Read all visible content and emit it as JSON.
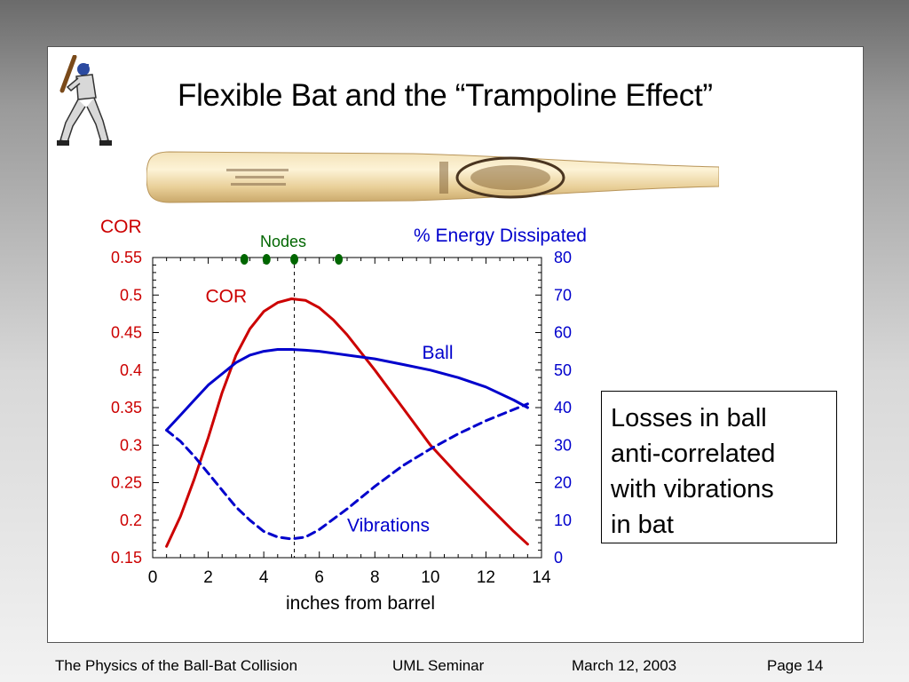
{
  "slide": {
    "title": "Flexible Bat and the “Trampoline Effect”",
    "callout_lines": [
      "Losses in ball",
      "anti-correlated",
      "with vibrations",
      "in bat"
    ]
  },
  "footer": {
    "left": "The Physics of the Ball-Bat Collision",
    "center": "UML Seminar",
    "date": "March 12, 2003",
    "page": "Page 14"
  },
  "images": {
    "player": "baseball-batter-icon",
    "bat": "wooden-bat-image"
  },
  "chart_data": {
    "type": "line",
    "xlabel": "inches from barrel",
    "ylabel_left": "COR",
    "ylabel_right": "% Energy Dissipated",
    "xlim": [
      0,
      14
    ],
    "ylim_left": [
      0.15,
      0.55
    ],
    "ylim_right": [
      0,
      80
    ],
    "x_ticks": [
      "0",
      "2",
      "4",
      "6",
      "8",
      "10",
      "12",
      "14"
    ],
    "y_left_ticks": [
      "0.15",
      "0.2",
      "0.25",
      "0.3",
      "0.35",
      "0.4",
      "0.45",
      "0.5",
      "0.55"
    ],
    "y_right_ticks": [
      "0",
      "10",
      "20",
      "30",
      "40",
      "50",
      "60",
      "70",
      "80"
    ],
    "nodes_label": "Nodes",
    "nodes_x": [
      3.3,
      4.1,
      5.1,
      6.7
    ],
    "marker_x": 5.1,
    "colors": {
      "cor": "#cc0000",
      "energy": "#0000cc",
      "nodes": "#006600"
    },
    "series": [
      {
        "name": "COR",
        "axis": "left",
        "style": "solid",
        "color": "#cc0000",
        "x": [
          0.5,
          1,
          1.5,
          2,
          2.5,
          3,
          3.5,
          4,
          4.5,
          5,
          5.5,
          6,
          6.5,
          7,
          8,
          9,
          10,
          11,
          12,
          13,
          13.5
        ],
        "y": [
          0.165,
          0.205,
          0.255,
          0.31,
          0.37,
          0.42,
          0.455,
          0.478,
          0.49,
          0.495,
          0.493,
          0.483,
          0.467,
          0.447,
          0.4,
          0.35,
          0.3,
          0.26,
          0.222,
          0.185,
          0.168
        ]
      },
      {
        "name": "Ball",
        "axis": "right",
        "style": "solid",
        "color": "#0000cc",
        "x": [
          0.5,
          1,
          1.5,
          2,
          2.5,
          3,
          3.5,
          4,
          4.5,
          5,
          5.5,
          6,
          7,
          8,
          9,
          10,
          11,
          12,
          13,
          13.5
        ],
        "y": [
          34,
          38,
          42,
          46,
          49,
          52,
          54,
          55,
          55.5,
          55.5,
          55.3,
          55,
          54,
          53,
          51.5,
          50,
          48,
          45.5,
          42,
          40
        ]
      },
      {
        "name": "Vibrations",
        "axis": "right",
        "style": "dashed",
        "color": "#0000cc",
        "x": [
          0.5,
          1,
          1.5,
          2,
          2.5,
          3,
          3.5,
          4,
          4.5,
          5,
          5.5,
          6,
          7,
          8,
          9,
          10,
          11,
          12,
          13,
          13.5
        ],
        "y": [
          34,
          31,
          27,
          22.5,
          18,
          13.5,
          10,
          7,
          5.5,
          5,
          5.5,
          7.5,
          13,
          19,
          24.5,
          29,
          33,
          36.5,
          39.5,
          41
        ]
      }
    ],
    "annotations": [
      {
        "text": "COR",
        "x": 1.9,
        "y_left": 0.49,
        "color": "#cc0000"
      },
      {
        "text": "Ball",
        "x": 9.7,
        "y_right": 53,
        "color": "#0000cc"
      },
      {
        "text": "Vibrations",
        "x": 7.0,
        "y_right": 7,
        "color": "#0000cc"
      }
    ]
  }
}
